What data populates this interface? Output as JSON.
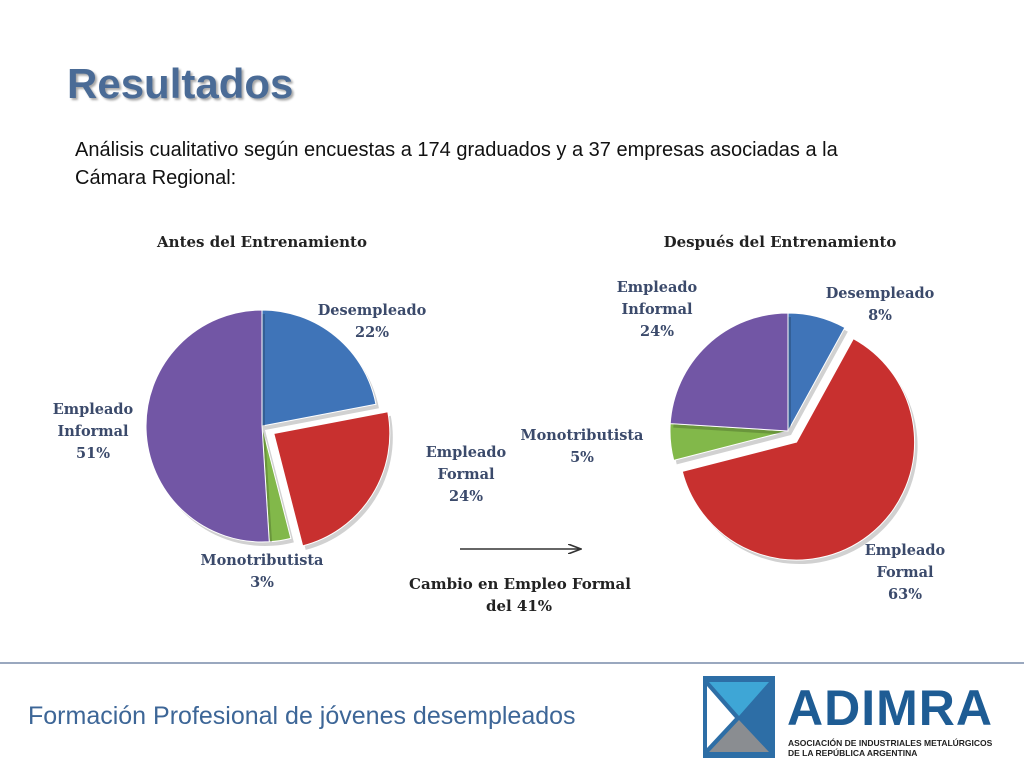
{
  "slide": {
    "title": "Resultados",
    "subtitle_line1": "Análisis cualitativo según encuestas a 174 graduados y a 37 empresas asociadas a la",
    "subtitle_line2": "Cámara Regional:",
    "footer": "Formación Profesional de jóvenes desempleados"
  },
  "chart_data": [
    {
      "type": "pie",
      "title": "Antes del Entrenamiento",
      "slices": [
        {
          "label": [
            "Desempleado"
          ],
          "pct_label": "22%",
          "value": 22,
          "color": "#3f74b8",
          "exploded": false
        },
        {
          "label": [
            "Empleado",
            "Formal"
          ],
          "pct_label": "24%",
          "value": 24,
          "color": "#c8302f",
          "exploded": true
        },
        {
          "label": [
            "Monotributista"
          ],
          "pct_label": "3%",
          "value": 3,
          "color": "#82b84a",
          "exploded": false
        },
        {
          "label": [
            "Empleado",
            "Informal"
          ],
          "pct_label": "51%",
          "value": 51,
          "color": "#7256a5",
          "exploded": false
        }
      ]
    },
    {
      "type": "pie",
      "title": "Después del Entrenamiento",
      "slices": [
        {
          "label": [
            "Desempleado"
          ],
          "pct_label": "8%",
          "value": 8,
          "color": "#3f74b8",
          "exploded": false
        },
        {
          "label": [
            "Empleado",
            "Formal"
          ],
          "pct_label": "63%",
          "value": 63,
          "color": "#c8302f",
          "exploded": true
        },
        {
          "label": [
            "Monotributista"
          ],
          "pct_label": "5%",
          "value": 5,
          "color": "#82b84a",
          "exploded": false
        },
        {
          "label": [
            "Empleado",
            "Informal"
          ],
          "pct_label": "24%",
          "value": 24,
          "color": "#7256a5",
          "exploded": false
        }
      ]
    }
  ],
  "annotation": {
    "line1": "Cambio en Empleo Formal",
    "line2": "del 41%"
  },
  "logo": {
    "name": "ADIMRA",
    "line1": "ASOCIACIÓN DE INDUSTRIALES METALÚRGICOS",
    "line2": "DE LA REPÚBLICA ARGENTINA",
    "colors": {
      "blue": "#2d6ea6",
      "cyan": "#3ea6d6",
      "grey": "#8a8d91",
      "text": "#1e5c94"
    }
  }
}
